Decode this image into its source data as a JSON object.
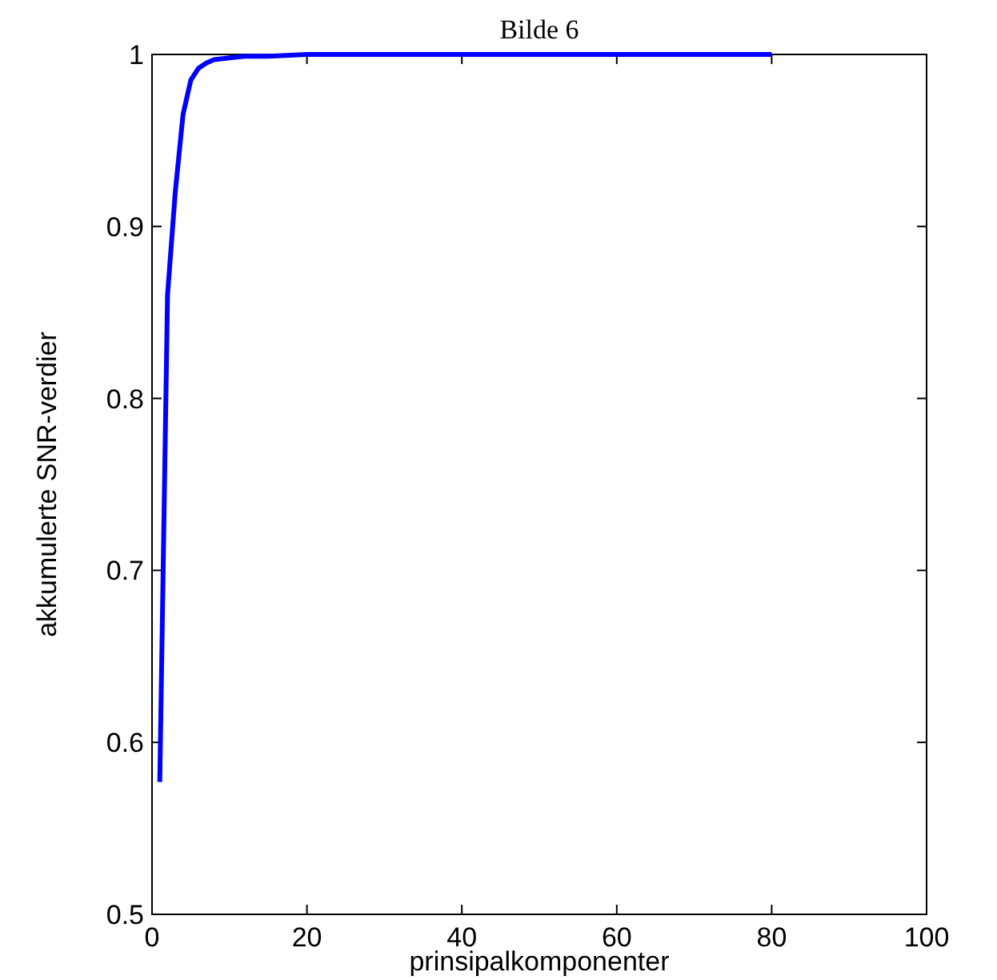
{
  "chart_data": {
    "type": "line",
    "title": "Bilde 6",
    "xlabel": "prinsipalkomponenter",
    "ylabel": "akkumulerte SNR-verdier",
    "x": [
      1,
      2,
      3,
      4,
      5,
      6,
      7,
      8,
      10,
      12,
      15,
      20,
      26,
      40,
      60,
      80
    ],
    "series": [
      {
        "color": "#0000ff",
        "values": [
          0.577,
          0.86,
          0.92,
          0.965,
          0.985,
          0.992,
          0.995,
          0.997,
          0.998,
          0.999,
          0.999,
          1,
          1,
          1,
          1,
          1
        ]
      }
    ],
    "xlim": [
      0,
      100
    ],
    "xticks": [
      0,
      20,
      40,
      60,
      80,
      100
    ],
    "ylim": [
      0.5,
      1
    ],
    "yticks": [
      0.5,
      0.6,
      0.7,
      0.8,
      0.9,
      1
    ],
    "grid": false
  }
}
